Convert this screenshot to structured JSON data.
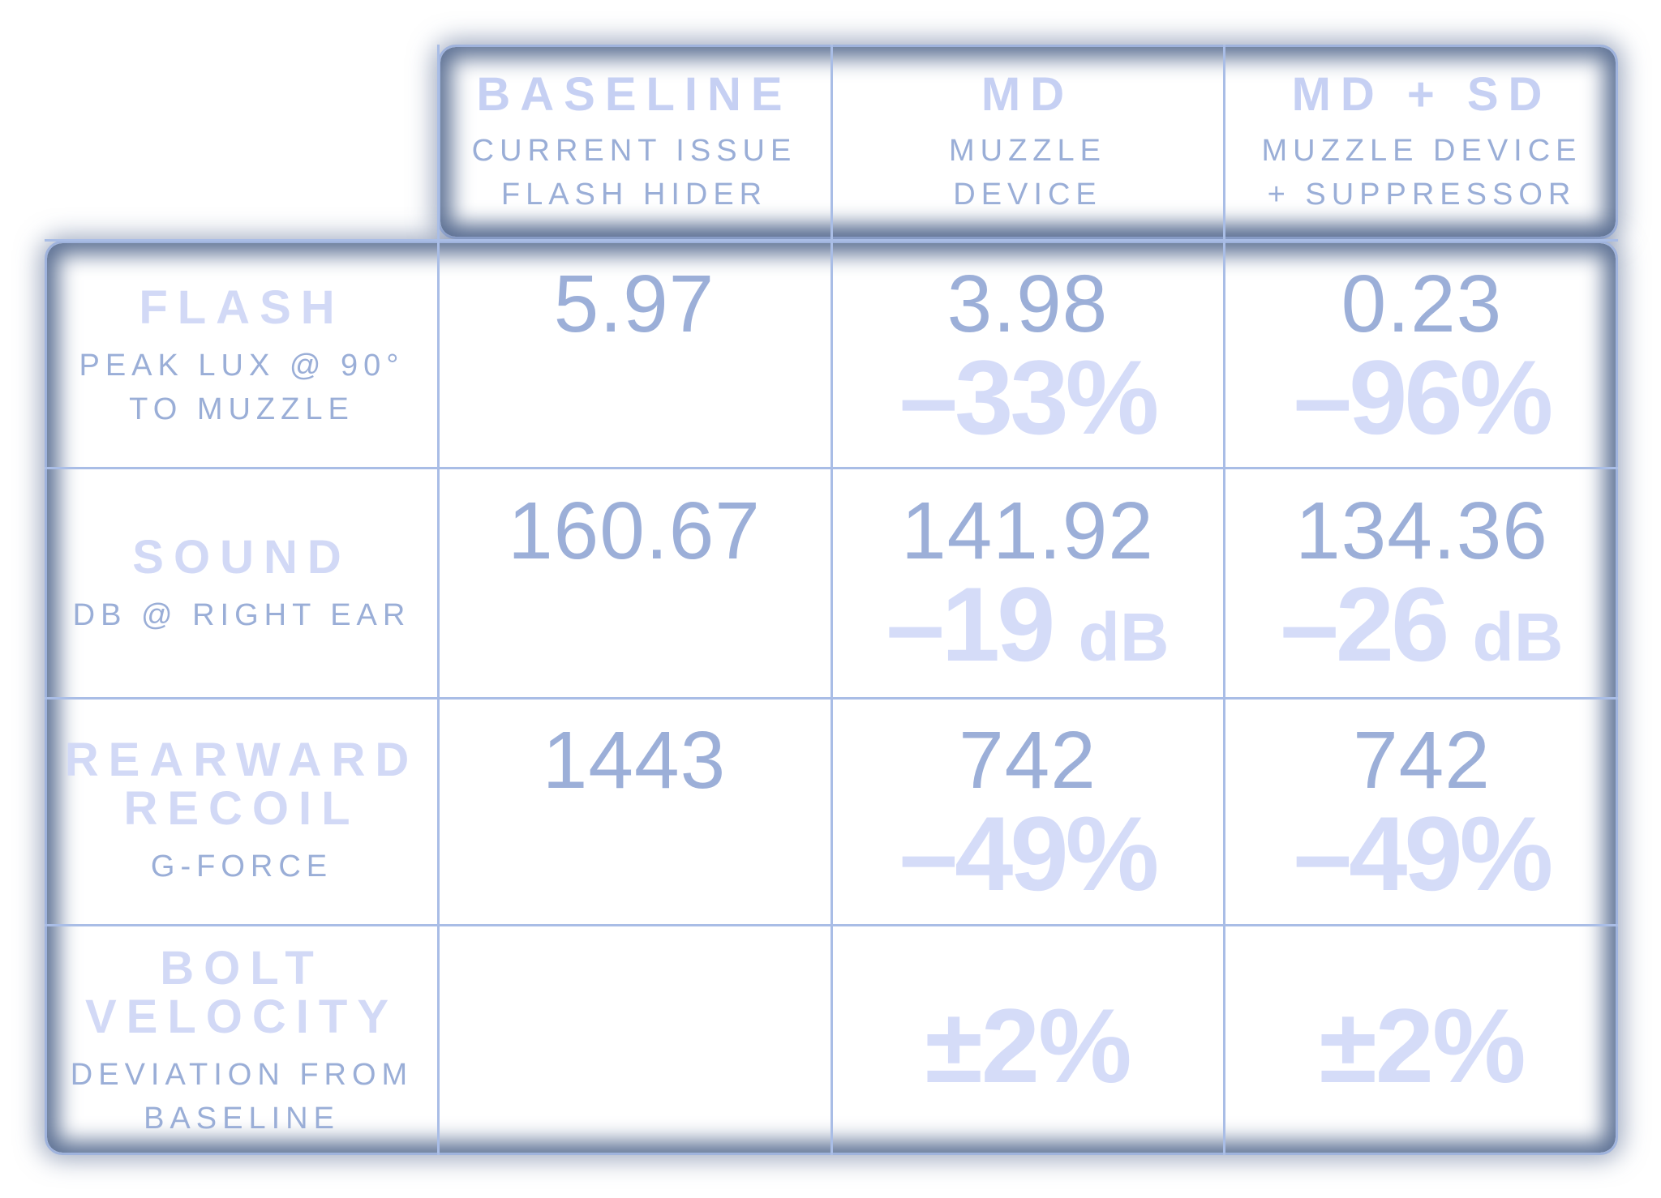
{
  "chart_data": {
    "type": "table",
    "columns": [
      {
        "title": "BASELINE",
        "sub_lines": [
          "CURRENT ISSUE",
          "FLASH HIDER"
        ]
      },
      {
        "title": "MD",
        "sub_lines": [
          "MUZZLE",
          "DEVICE"
        ]
      },
      {
        "title": "MD + SD",
        "sub_lines": [
          "MUZZLE DEVICE",
          "+ SUPPRESSOR"
        ]
      }
    ],
    "rows": [
      {
        "title_lines": [
          "FLASH"
        ],
        "sub_lines": [
          "PEAK LUX @ 90°",
          "TO MUZZLE"
        ],
        "cells": [
          {
            "value": "5.97",
            "change": "",
            "unit": ""
          },
          {
            "value": "3.98",
            "change": "–33%",
            "unit": ""
          },
          {
            "value": "0.23",
            "change": "–96%",
            "unit": ""
          }
        ]
      },
      {
        "title_lines": [
          "SOUND"
        ],
        "sub_lines": [
          "DB @ RIGHT EAR"
        ],
        "cells": [
          {
            "value": "160.67",
            "change": "",
            "unit": ""
          },
          {
            "value": "141.92",
            "change": "–19",
            "unit": "dB"
          },
          {
            "value": "134.36",
            "change": "–26",
            "unit": "dB"
          }
        ]
      },
      {
        "title_lines": [
          "REARWARD",
          "RECOIL"
        ],
        "sub_lines": [
          "G-FORCE"
        ],
        "cells": [
          {
            "value": "1443",
            "change": "",
            "unit": ""
          },
          {
            "value": "742",
            "change": "–49%",
            "unit": ""
          },
          {
            "value": "742",
            "change": "–49%",
            "unit": ""
          }
        ]
      },
      {
        "title_lines": [
          "BOLT",
          "VELOCITY"
        ],
        "sub_lines": [
          "DEVIATION FROM",
          "BASELINE"
        ],
        "cells": [
          {
            "value": "",
            "change": "",
            "unit": ""
          },
          {
            "value": "",
            "change": "±2%",
            "unit": ""
          },
          {
            "value": "",
            "change": "±2%",
            "unit": ""
          }
        ]
      }
    ]
  },
  "colors": {
    "title_text": "#c6d0f3",
    "sub_text": "#9aaed7",
    "value_text": "#9cafd8",
    "change_text": "#d5dcf8",
    "frame_glow": "#5e7295",
    "grid_line": "#a9bde6"
  }
}
